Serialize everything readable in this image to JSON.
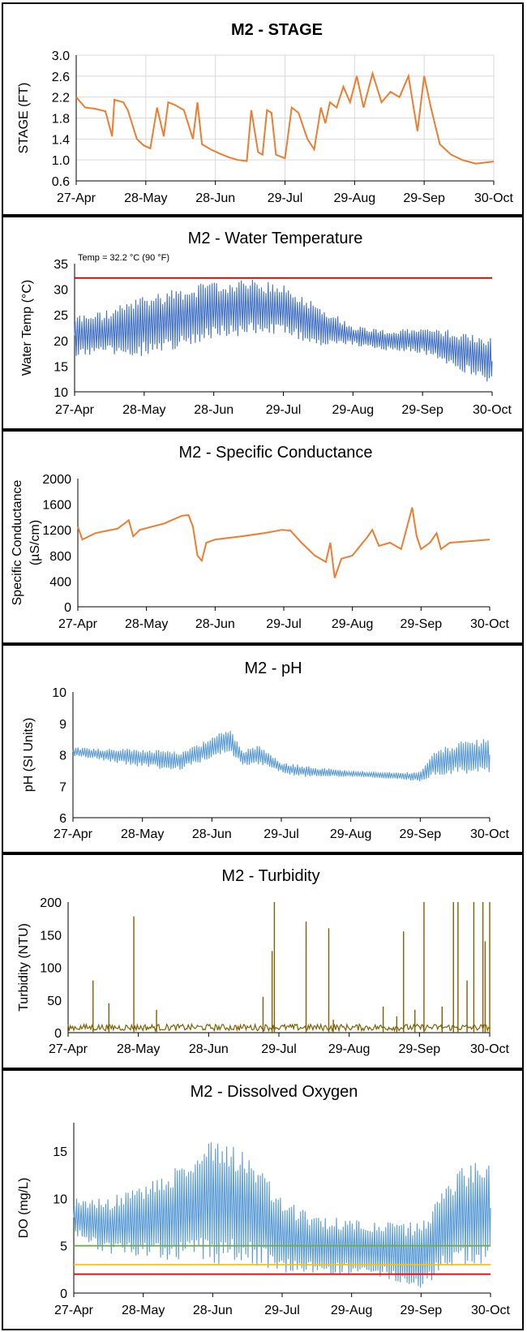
{
  "chart_data": [
    {
      "type": "line",
      "title": "M2 - STAGE",
      "ylabel": "STAGE (FT)",
      "xlabel": "",
      "x_ticks": [
        "27-Apr",
        "28-May",
        "28-Jun",
        "29-Jul",
        "29-Aug",
        "29-Sep",
        "30-Oct"
      ],
      "y_ticks": [
        "0.6",
        "1.0",
        "1.4",
        "1.8",
        "2.2",
        "2.6",
        "3.0"
      ],
      "ylim": [
        0.6,
        3.0
      ],
      "grid": true,
      "color": "#ED7D31",
      "series": [
        {
          "x": [
            "27-Apr",
            "1-May",
            "5-May",
            "10-May",
            "13-May",
            "14-May",
            "18-May",
            "20-May",
            "24-May",
            "27-May",
            "30-May",
            "2-Jun",
            "5-Jun",
            "7-Jun",
            "10-Jun",
            "14-Jun",
            "18-Jun",
            "20-Jun",
            "22-Jun",
            "26-Jun",
            "30-Jun",
            "4-Jul",
            "8-Jul",
            "12-Jul",
            "14-Jul",
            "17-Jul",
            "19-Jul",
            "21-Jul",
            "23-Jul",
            "25-Jul",
            "29-Jul",
            "1-Aug",
            "4-Aug",
            "8-Aug",
            "11-Aug",
            "14-Aug",
            "16-Aug",
            "18-Aug",
            "21-Aug",
            "24-Aug",
            "27-Aug",
            "30-Aug",
            "2-Sep",
            "6-Sep",
            "10-Sep",
            "14-Sep",
            "18-Sep",
            "22-Sep",
            "26-Sep",
            "29-Sep",
            "2-Oct",
            "6-Oct",
            "11-Oct",
            "16-Oct",
            "22-Oct",
            "30-Oct"
          ],
          "values": [
            2.2,
            2.0,
            1.98,
            1.93,
            1.45,
            2.15,
            2.1,
            1.95,
            1.4,
            1.28,
            1.22,
            2.0,
            1.45,
            2.1,
            2.05,
            1.95,
            1.4,
            2.1,
            1.3,
            1.2,
            1.12,
            1.05,
            1.0,
            0.98,
            1.95,
            1.15,
            1.1,
            1.95,
            1.9,
            1.1,
            1.03,
            2.0,
            1.9,
            1.4,
            1.2,
            2.0,
            1.7,
            2.1,
            2.0,
            2.4,
            2.1,
            2.6,
            2.0,
            2.65,
            2.1,
            2.3,
            2.2,
            2.6,
            1.55,
            2.6,
            2.0,
            1.3,
            1.1,
            1.0,
            0.93,
            0.97
          ]
        }
      ]
    },
    {
      "type": "line",
      "title": "M2 - Water Temperature",
      "ylabel": "Water Temp (°C)",
      "xlabel": "",
      "x_ticks": [
        "27-Apr",
        "28-May",
        "28-Jun",
        "29-Jul",
        "29-Aug",
        "29-Sep",
        "30-Oct"
      ],
      "y_ticks": [
        "10",
        "15",
        "20",
        "25",
        "30",
        "35"
      ],
      "ylim": [
        10,
        35
      ],
      "annotation": "Temp = 32.2 °C (90 °F)",
      "threshold": {
        "value": 32.2,
        "color": "#C00000"
      },
      "color": "#4472C4",
      "series": [
        {
          "x": [
            "27-Apr",
            "12-May",
            "28-May",
            "13-Jun",
            "28-Jun",
            "14-Jul",
            "29-Jul",
            "14-Aug",
            "29-Aug",
            "14-Sep",
            "29-Sep",
            "15-Oct",
            "30-Oct"
          ],
          "mean": [
            21,
            21.5,
            23,
            24.5,
            26,
            26.5,
            26,
            23,
            21,
            20,
            20,
            18,
            16
          ],
          "amplitude": [
            4,
            4.5,
            6,
            6,
            5.5,
            5.5,
            5,
            4,
            2,
            2,
            2.5,
            4,
            4.5
          ]
        }
      ]
    },
    {
      "type": "line",
      "title": "M2 - Specific Conductance",
      "ylabel": "Specific Conductance (µS/cm)",
      "ylabel_lines": [
        "Specific Conductance",
        "(µS/cm)"
      ],
      "xlabel": "",
      "x_ticks": [
        "27-Apr",
        "28-May",
        "28-Jun",
        "29-Jul",
        "29-Aug",
        "29-Sep",
        "30-Oct"
      ],
      "y_ticks": [
        "0",
        "400",
        "800",
        "1200",
        "1600",
        "2000"
      ],
      "ylim": [
        0,
        2000
      ],
      "color": "#ED7D31",
      "series": [
        {
          "x": [
            "27-Apr",
            "29-Apr",
            "5-May",
            "15-May",
            "20-May",
            "22-May",
            "25-May",
            "5-Jun",
            "13-Jun",
            "16-Jun",
            "18-Jun",
            "20-Jun",
            "22-Jun",
            "24-Jun",
            "28-Jun",
            "10-Jul",
            "20-Jul",
            "25-Jul",
            "28-Jul",
            "1-Aug",
            "6-Aug",
            "12-Aug",
            "17-Aug",
            "19-Aug",
            "21-Aug",
            "24-Aug",
            "29-Aug",
            "5-Sep",
            "7-Sep",
            "10-Sep",
            "15-Sep",
            "20-Sep",
            "25-Sep",
            "27-Sep",
            "29-Sep",
            "3-Oct",
            "6-Oct",
            "8-Oct",
            "12-Oct",
            "20-Oct",
            "30-Oct"
          ],
          "values": [
            1250,
            1050,
            1150,
            1220,
            1350,
            1100,
            1200,
            1300,
            1420,
            1430,
            1250,
            800,
            720,
            1000,
            1050,
            1100,
            1150,
            1180,
            1200,
            1190,
            1000,
            800,
            700,
            1000,
            450,
            750,
            800,
            1100,
            1200,
            950,
            1000,
            900,
            1550,
            1100,
            900,
            1000,
            1150,
            900,
            1000,
            1020,
            1050
          ]
        }
      ]
    },
    {
      "type": "line",
      "title": "M2 - pH",
      "ylabel": "pH (SI Units)",
      "xlabel": "",
      "x_ticks": [
        "27-Apr",
        "28-May",
        "28-Jun",
        "29-Jul",
        "29-Aug",
        "29-Sep",
        "30-Oct"
      ],
      "y_ticks": [
        "6",
        "7",
        "8",
        "9",
        "10"
      ],
      "ylim": [
        6,
        10
      ],
      "color": "#5B9BD5",
      "series": [
        {
          "x": [
            "27-Apr",
            "12-May",
            "28-May",
            "13-Jun",
            "28-Jun",
            "5-Jul",
            "12-Jul",
            "19-Jul",
            "29-Jul",
            "5-Aug",
            "14-Aug",
            "29-Aug",
            "14-Sep",
            "29-Sep",
            "5-Oct",
            "15-Oct",
            "30-Oct"
          ],
          "mean": [
            8.1,
            8.0,
            7.9,
            7.8,
            8.2,
            8.5,
            7.9,
            8.0,
            7.6,
            7.5,
            7.45,
            7.4,
            7.35,
            7.3,
            7.7,
            7.9,
            8.0
          ],
          "amplitude": [
            0.15,
            0.2,
            0.3,
            0.3,
            0.35,
            0.4,
            0.3,
            0.3,
            0.15,
            0.2,
            0.15,
            0.1,
            0.1,
            0.15,
            0.4,
            0.5,
            0.6
          ]
        }
      ]
    },
    {
      "type": "line",
      "title": "M2 - Turbidity",
      "ylabel": "Turbidity (NTU)",
      "xlabel": "",
      "x_ticks": [
        "27-Apr",
        "28-May",
        "28-Jun",
        "29-Jul",
        "29-Aug",
        "29-Sep",
        "30-Oct"
      ],
      "y_ticks": [
        "0",
        "50",
        "100",
        "150",
        "200"
      ],
      "ylim": [
        0,
        200
      ],
      "color": "#7F6000",
      "baseline": 6,
      "spikes": {
        "x": [
          "8-May",
          "15-May",
          "26-May",
          "5-Jun",
          "22-Jul",
          "26-Jul",
          "27-Jul",
          "10-Aug",
          "20-Aug",
          "22-Aug",
          "13-Sep",
          "19-Sep",
          "22-Sep",
          "27-Sep",
          "1-Oct",
          "9-Oct",
          "14-Oct",
          "16-Oct",
          "20-Oct",
          "23-Oct",
          "27-Oct",
          "28-Oct",
          "30-Oct"
        ],
        "values": [
          80,
          45,
          178,
          35,
          55,
          125,
          200,
          170,
          160,
          20,
          40,
          25,
          155,
          35,
          200,
          40,
          200,
          200,
          80,
          200,
          200,
          140,
          200
        ]
      }
    },
    {
      "type": "line",
      "title": "M2 - Dissolved Oxygen",
      "ylabel": "DO (mg/L)",
      "xlabel": "",
      "x_ticks": [
        "27-Apr",
        "28-May",
        "28-Jun",
        "29-Jul",
        "29-Aug",
        "29-Sep",
        "30-Oct"
      ],
      "y_ticks": [
        "0",
        "5",
        "10",
        "15"
      ],
      "ylim": [
        0,
        18
      ],
      "thresholds": [
        {
          "value": 5,
          "color": "#70AD47"
        },
        {
          "value": 3,
          "color": "#FFC000"
        },
        {
          "value": 2,
          "color": "#FF0000"
        }
      ],
      "color": "#5B9BD5",
      "series": [
        {
          "x": [
            "27-Apr",
            "12-May",
            "28-May",
            "13-Jun",
            "21-Jun",
            "28-Jun",
            "14-Jul",
            "29-Jul",
            "14-Aug",
            "29-Aug",
            "14-Sep",
            "29-Sep",
            "15-Oct",
            "30-Oct"
          ],
          "mean": [
            8,
            7,
            7.5,
            8.5,
            9,
            10,
            9,
            6,
            5,
            5,
            4.5,
            4,
            8,
            9
          ],
          "amplitude": [
            2,
            3,
            4,
            5,
            6,
            7,
            6,
            4,
            3,
            3,
            3,
            3.5,
            5,
            6
          ]
        }
      ]
    }
  ]
}
